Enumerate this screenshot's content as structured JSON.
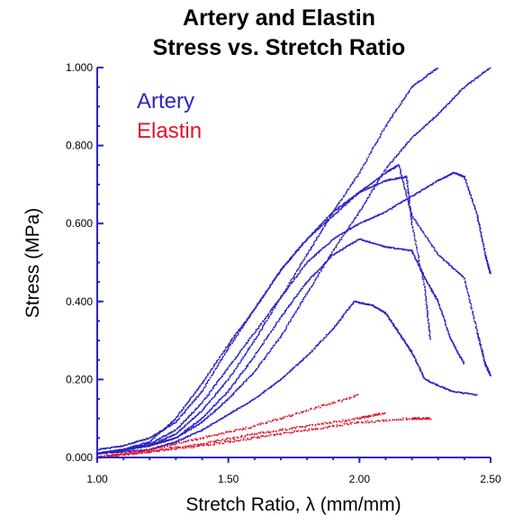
{
  "chart_data": {
    "type": "scatter",
    "title": [
      "Artery and Elastin",
      "Stress vs. Stretch Ratio"
    ],
    "xlabel": "Stretch Ratio, λ (mm/mm)",
    "ylabel": "Stress (MPa)",
    "xlim": [
      1.0,
      2.5
    ],
    "ylim": [
      0.0,
      1.0
    ],
    "x_ticks": [
      "1.00",
      "1.50",
      "2.00",
      "2.50"
    ],
    "x_tick_values": [
      1.0,
      1.5,
      2.0,
      2.5
    ],
    "y_ticks": [
      "0.000",
      "0.200",
      "0.400",
      "0.600",
      "0.800",
      "1.000"
    ],
    "y_tick_values": [
      0.0,
      0.2,
      0.4,
      0.6,
      0.8,
      1.0
    ],
    "grid": false,
    "legend_placement": "top-left",
    "colors": {
      "artery": "#2b24c4",
      "elastin": "#e0142c",
      "axis": "#2b24c4"
    },
    "series": [
      {
        "name": "Artery",
        "color": "#2b24c4",
        "curves": [
          [
            [
              1.0,
              0.01
            ],
            [
              1.1,
              0.02
            ],
            [
              1.2,
              0.035
            ],
            [
              1.3,
              0.07
            ],
            [
              1.4,
              0.14
            ],
            [
              1.5,
              0.23
            ],
            [
              1.6,
              0.32
            ],
            [
              1.7,
              0.41
            ],
            [
              1.8,
              0.52
            ],
            [
              1.9,
              0.63
            ],
            [
              2.0,
              0.73
            ],
            [
              2.1,
              0.85
            ],
            [
              2.2,
              0.95
            ],
            [
              2.3,
              1.0
            ]
          ],
          [
            [
              1.0,
              0.01
            ],
            [
              1.1,
              0.02
            ],
            [
              1.2,
              0.03
            ],
            [
              1.3,
              0.05
            ],
            [
              1.4,
              0.09
            ],
            [
              1.5,
              0.15
            ],
            [
              1.6,
              0.22
            ],
            [
              1.7,
              0.31
            ],
            [
              1.8,
              0.42
            ],
            [
              1.9,
              0.53
            ],
            [
              2.0,
              0.63
            ],
            [
              2.1,
              0.74
            ],
            [
              2.2,
              0.82
            ],
            [
              2.3,
              0.88
            ],
            [
              2.4,
              0.95
            ],
            [
              2.5,
              1.0
            ]
          ],
          [
            [
              1.0,
              0.01
            ],
            [
              1.1,
              0.02
            ],
            [
              1.2,
              0.04
            ],
            [
              1.3,
              0.1
            ],
            [
              1.4,
              0.19
            ],
            [
              1.5,
              0.29
            ],
            [
              1.6,
              0.38
            ],
            [
              1.7,
              0.48
            ],
            [
              1.8,
              0.56
            ],
            [
              1.9,
              0.63
            ],
            [
              2.0,
              0.68
            ],
            [
              2.1,
              0.71
            ],
            [
              2.18,
              0.72
            ],
            [
              2.2,
              0.6
            ],
            [
              2.25,
              0.43
            ],
            [
              2.27,
              0.3
            ]
          ],
          [
            [
              1.0,
              0.02
            ],
            [
              1.1,
              0.03
            ],
            [
              1.2,
              0.05
            ],
            [
              1.3,
              0.09
            ],
            [
              1.4,
              0.17
            ],
            [
              1.5,
              0.28
            ],
            [
              1.6,
              0.38
            ],
            [
              1.7,
              0.48
            ],
            [
              1.8,
              0.56
            ],
            [
              1.9,
              0.62
            ],
            [
              2.0,
              0.68
            ],
            [
              2.1,
              0.73
            ],
            [
              2.15,
              0.75
            ],
            [
              2.2,
              0.62
            ],
            [
              2.3,
              0.52
            ],
            [
              2.4,
              0.46
            ],
            [
              2.45,
              0.32
            ],
            [
              2.48,
              0.24
            ],
            [
              2.5,
              0.21
            ]
          ],
          [
            [
              1.0,
              0.01
            ],
            [
              1.1,
              0.02
            ],
            [
              1.2,
              0.03
            ],
            [
              1.3,
              0.06
            ],
            [
              1.4,
              0.12
            ],
            [
              1.5,
              0.2
            ],
            [
              1.6,
              0.3
            ],
            [
              1.7,
              0.41
            ],
            [
              1.8,
              0.5
            ],
            [
              1.9,
              0.56
            ],
            [
              2.0,
              0.6
            ],
            [
              2.1,
              0.63
            ],
            [
              2.2,
              0.67
            ],
            [
              2.3,
              0.71
            ],
            [
              2.36,
              0.73
            ],
            [
              2.4,
              0.72
            ],
            [
              2.45,
              0.62
            ],
            [
              2.48,
              0.52
            ],
            [
              2.5,
              0.47
            ]
          ],
          [
            [
              1.0,
              0.01
            ],
            [
              1.1,
              0.02
            ],
            [
              1.2,
              0.03
            ],
            [
              1.3,
              0.05
            ],
            [
              1.4,
              0.1
            ],
            [
              1.5,
              0.17
            ],
            [
              1.6,
              0.26
            ],
            [
              1.7,
              0.36
            ],
            [
              1.8,
              0.45
            ],
            [
              1.9,
              0.52
            ],
            [
              2.0,
              0.56
            ],
            [
              2.1,
              0.54
            ],
            [
              2.2,
              0.53
            ],
            [
              2.25,
              0.46
            ],
            [
              2.3,
              0.4
            ],
            [
              2.35,
              0.3
            ],
            [
              2.4,
              0.24
            ]
          ],
          [
            [
              1.0,
              0.01
            ],
            [
              1.1,
              0.015
            ],
            [
              1.2,
              0.02
            ],
            [
              1.3,
              0.04
            ],
            [
              1.4,
              0.07
            ],
            [
              1.5,
              0.11
            ],
            [
              1.6,
              0.15
            ],
            [
              1.7,
              0.2
            ],
            [
              1.8,
              0.26
            ],
            [
              1.9,
              0.33
            ],
            [
              1.98,
              0.4
            ],
            [
              2.05,
              0.39
            ],
            [
              2.1,
              0.37
            ],
            [
              2.15,
              0.32
            ],
            [
              2.2,
              0.27
            ],
            [
              2.25,
              0.2
            ],
            [
              2.35,
              0.17
            ],
            [
              2.45,
              0.16
            ]
          ]
        ]
      },
      {
        "name": "Elastin",
        "color": "#e0142c",
        "curves": [
          [
            [
              1.0,
              0.0
            ],
            [
              1.2,
              0.02
            ],
            [
              1.4,
              0.05
            ],
            [
              1.6,
              0.08
            ],
            [
              1.8,
              0.12
            ],
            [
              2.0,
              0.16
            ]
          ],
          [
            [
              1.0,
              0.0
            ],
            [
              1.2,
              0.015
            ],
            [
              1.4,
              0.035
            ],
            [
              1.6,
              0.06
            ],
            [
              1.8,
              0.08
            ],
            [
              2.0,
              0.1
            ],
            [
              2.1,
              0.115
            ]
          ],
          [
            [
              1.0,
              0.0
            ],
            [
              1.2,
              0.015
            ],
            [
              1.4,
              0.03
            ],
            [
              1.6,
              0.05
            ],
            [
              1.8,
              0.07
            ],
            [
              2.0,
              0.09
            ],
            [
              2.2,
              0.1
            ],
            [
              2.27,
              0.1
            ]
          ]
        ]
      }
    ]
  }
}
